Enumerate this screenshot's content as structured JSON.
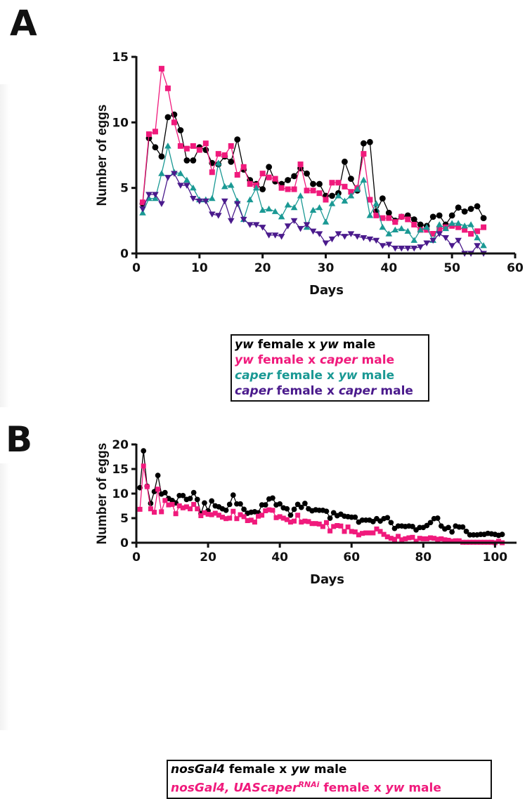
{
  "panels": {
    "a": "A",
    "b": "B"
  },
  "chart_data": [
    {
      "type": "line",
      "panel": "A",
      "xlabel": "Days",
      "ylabel": "Number of eggs",
      "xlim": [
        0,
        60
      ],
      "ylim": [
        0,
        15
      ],
      "xticks": [
        0,
        10,
        20,
        30,
        40,
        50,
        60
      ],
      "yticks": [
        0,
        5,
        10,
        15
      ],
      "grid": false,
      "legend_position": "below",
      "x": [
        1,
        2,
        3,
        4,
        5,
        6,
        7,
        8,
        9,
        10,
        11,
        12,
        13,
        14,
        15,
        16,
        17,
        18,
        19,
        20,
        21,
        22,
        23,
        24,
        25,
        26,
        27,
        28,
        29,
        30,
        31,
        32,
        33,
        34,
        35,
        36,
        37,
        38,
        39,
        40,
        41,
        42,
        43,
        44,
        45,
        46,
        47,
        48,
        49,
        50,
        51,
        52,
        53,
        54,
        55
      ],
      "series": [
        {
          "name": "yw female x yw male",
          "marker": "circle",
          "color": "#000000",
          "legend": [
            {
              "t": "yw",
              "i": true
            },
            {
              "t": " female x ",
              "i": false
            },
            {
              "t": "yw",
              "i": true
            },
            {
              "t": " male",
              "i": false
            }
          ],
          "values": [
            3.8,
            8.8,
            8.1,
            7.4,
            10.4,
            10.6,
            9.4,
            7.1,
            7.1,
            8.1,
            7.9,
            6.9,
            6.8,
            7.4,
            7.0,
            8.7,
            6.4,
            5.6,
            5.3,
            4.9,
            6.6,
            5.5,
            5.3,
            5.6,
            5.9,
            6.5,
            6.1,
            5.3,
            5.3,
            4.4,
            4.4,
            4.6,
            7.0,
            5.7,
            4.8,
            8.4,
            8.5,
            3.2,
            4.2,
            3.1,
            2.5,
            2.8,
            2.9,
            2.6,
            2.2,
            2.1,
            2.8,
            2.9,
            2.2,
            2.9,
            3.5,
            3.2,
            3.4,
            3.6,
            2.7
          ]
        },
        {
          "name": "yw female x caper male",
          "marker": "square",
          "color": "#f01a7c",
          "legend": [
            {
              "t": "yw",
              "i": true
            },
            {
              "t": " female x ",
              "i": false
            },
            {
              "t": "caper",
              "i": true
            },
            {
              "t": " male",
              "i": false
            }
          ],
          "values": [
            3.9,
            9.1,
            9.3,
            14.1,
            12.6,
            10.0,
            8.2,
            8.0,
            8.2,
            7.9,
            8.4,
            6.2,
            7.6,
            7.5,
            8.2,
            6.0,
            6.6,
            5.3,
            5.2,
            6.1,
            5.8,
            5.7,
            5.0,
            4.9,
            4.9,
            6.8,
            4.8,
            4.8,
            4.6,
            4.1,
            5.4,
            5.4,
            5.1,
            4.7,
            5.0,
            7.6,
            4.1,
            2.9,
            2.7,
            2.7,
            2.4,
            2.8,
            2.6,
            2.2,
            1.8,
            1.8,
            1.5,
            1.8,
            2.0,
            2.1,
            2.0,
            1.8,
            1.5,
            1.7,
            2.0
          ]
        },
        {
          "name": "caper female x yw male",
          "marker": "triangle",
          "color": "#1a9994",
          "legend": [
            {
              "t": "caper",
              "i": true
            },
            {
              "t": " female x ",
              "i": false
            },
            {
              "t": "yw",
              "i": true
            },
            {
              "t": " male",
              "i": false
            }
          ],
          "values": [
            3.1,
            4.2,
            4.2,
            6.1,
            8.2,
            6.2,
            6.1,
            5.6,
            5.0,
            4.1,
            4.1,
            4.2,
            6.9,
            5.1,
            5.2,
            4.0,
            2.6,
            4.1,
            5.0,
            3.3,
            3.4,
            3.2,
            2.8,
            3.7,
            3.5,
            4.4,
            2.0,
            3.3,
            3.5,
            2.4,
            3.8,
            4.4,
            4.0,
            4.4,
            4.9,
            5.6,
            2.9,
            3.8,
            2.0,
            1.5,
            1.8,
            1.9,
            1.7,
            1.0,
            1.8,
            2.0,
            1.0,
            2.2,
            1.9,
            2.3,
            2.3,
            2.1,
            2.2,
            1.2,
            0.6
          ]
        },
        {
          "name": "caper female x caper male",
          "marker": "triangle-down",
          "color": "#4a1a8c",
          "legend": [
            {
              "t": "caper",
              "i": true
            },
            {
              "t": " female x ",
              "i": false
            },
            {
              "t": "caper",
              "i": true
            },
            {
              "t": " male",
              "i": false
            }
          ],
          "values": [
            3.4,
            4.5,
            4.5,
            3.8,
            5.8,
            6.1,
            5.2,
            5.2,
            4.2,
            4.0,
            4.0,
            3.0,
            2.9,
            4.0,
            2.5,
            3.8,
            2.6,
            2.2,
            2.2,
            2.0,
            1.4,
            1.4,
            1.3,
            2.1,
            2.5,
            1.9,
            2.2,
            1.7,
            1.5,
            0.8,
            1.1,
            1.5,
            1.3,
            1.5,
            1.3,
            1.2,
            1.1,
            1.0,
            0.6,
            0.7,
            0.4,
            0.4,
            0.4,
            0.4,
            0.5,
            0.8,
            1.0,
            1.5,
            1.2,
            0.6,
            1.0,
            0.0,
            0.0,
            0.6,
            0.0
          ]
        }
      ]
    },
    {
      "type": "line",
      "panel": "B",
      "xlabel": "Days",
      "ylabel": "Number of eggs",
      "xlim": [
        0,
        106
      ],
      "ylim": [
        0,
        20
      ],
      "xticks": [
        0,
        20,
        40,
        60,
        80,
        100
      ],
      "yticks": [
        0,
        5,
        10,
        15,
        20
      ],
      "grid": false,
      "legend_position": "below",
      "x_start": 1,
      "x_end": 102,
      "series": [
        {
          "name": "nosGal4 female x yw male",
          "marker": "circle",
          "color": "#000000",
          "legend": [
            {
              "t": "nosGal4",
              "i": true
            },
            {
              "t": " female x ",
              "i": false
            },
            {
              "t": "yw",
              "i": true
            },
            {
              "t": " male",
              "i": false
            }
          ],
          "values": [
            11.2,
            18.7,
            11.5,
            8.0,
            10.4,
            13.7,
            9.9,
            10.2,
            9.0,
            8.6,
            8.1,
            9.6,
            9.6,
            8.8,
            9.0,
            10.2,
            8.8,
            5.9,
            8.1,
            6.5,
            8.5,
            7.5,
            7.3,
            6.9,
            6.6,
            7.8,
            9.7,
            7.9,
            7.9,
            6.8,
            6.0,
            6.2,
            6.3,
            6.1,
            7.7,
            7.7,
            8.9,
            9.1,
            7.7,
            7.9,
            7.1,
            6.9,
            5.6,
            6.8,
            7.8,
            7.2,
            8.0,
            6.9,
            6.5,
            6.7,
            6.6,
            6.6,
            6.4,
            5.0,
            6.1,
            5.5,
            5.8,
            5.4,
            5.3,
            5.2,
            5.2,
            4.2,
            4.6,
            4.6,
            4.6,
            4.3,
            4.9,
            4.4,
            4.9,
            5.1,
            4.1,
            2.9,
            3.4,
            3.4,
            3.3,
            3.4,
            3.3,
            2.6,
            3.1,
            3.1,
            3.5,
            4.1,
            4.9,
            5.0,
            3.4,
            2.8,
            3.1,
            2.2,
            3.4,
            3.2,
            3.2,
            2.3,
            1.6,
            1.6,
            1.6,
            1.7,
            1.7,
            1.9,
            1.8,
            1.7,
            1.5,
            1.7
          ]
        },
        {
          "name": "nosGal4, UAScaperRNAi female x yw male",
          "marker": "square",
          "color": "#f01a7c",
          "legend": [
            {
              "t": "nosGal4, UAScaper",
              "i": true
            },
            {
              "t": "RNAi",
              "i": true,
              "sup": true
            },
            {
              "t": " female x ",
              "i": false
            },
            {
              "t": "yw",
              "i": true
            },
            {
              "t": " male",
              "i": false
            }
          ],
          "values": [
            6.8,
            15.6,
            11.4,
            6.9,
            6.2,
            10.9,
            6.3,
            8.6,
            7.7,
            7.8,
            5.9,
            7.5,
            7.1,
            7.3,
            6.9,
            7.8,
            6.9,
            5.5,
            6.1,
            5.8,
            5.7,
            6.0,
            5.6,
            5.2,
            4.9,
            5.0,
            6.4,
            4.9,
            5.7,
            5.3,
            4.5,
            4.6,
            4.2,
            5.4,
            5.6,
            6.5,
            6.7,
            6.6,
            5.1,
            5.3,
            5.0,
            4.7,
            4.2,
            4.4,
            5.6,
            4.2,
            4.4,
            4.3,
            3.9,
            3.9,
            3.8,
            3.3,
            4.1,
            2.4,
            3.3,
            3.5,
            3.4,
            2.3,
            3.2,
            2.3,
            2.2,
            1.6,
            1.9,
            2.0,
            2.0,
            2.0,
            2.8,
            2.3,
            1.7,
            1.2,
            0.9,
            0.7,
            1.3,
            0.6,
            0.8,
            1.0,
            1.1,
            0.3,
            0.9,
            0.8,
            0.8,
            1.0,
            0.9,
            0.7,
            0.8,
            0.6,
            0.5,
            0.3,
            0.4,
            0.4,
            0.1,
            0.1,
            0.1,
            0.1,
            0.1,
            0.1,
            0.1,
            0.1,
            0.1,
            0.0,
            0.3,
            0.0
          ]
        }
      ]
    }
  ]
}
